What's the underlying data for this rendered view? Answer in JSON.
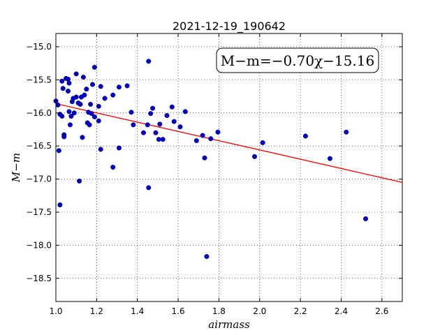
{
  "chart_data": {
    "type": "scatter",
    "title": "2021-12-19_190642",
    "xlabel": "airmass",
    "ylabel": "M−m",
    "xlim": [
      1.0,
      2.7
    ],
    "ylim": [
      -18.85,
      -14.8
    ],
    "y_inverted": true,
    "grid": true,
    "x_ticks": [
      1.0,
      1.2,
      1.4,
      1.6,
      1.8,
      2.0,
      2.2,
      2.4,
      2.6
    ],
    "x_tick_labels": [
      "1.0",
      "1.2",
      "1.4",
      "1.6",
      "1.8",
      "2.0",
      "2.2",
      "2.4",
      "2.6"
    ],
    "y_ticks": [
      -15.0,
      -15.5,
      -16.0,
      -16.5,
      -17.0,
      -17.5,
      -18.0,
      -18.5
    ],
    "y_tick_labels": [
      "−15.0",
      "−15.5",
      "−16.0",
      "−16.5",
      "−17.0",
      "−17.5",
      "−18.0",
      "−18.5"
    ],
    "annotation": "M−m=−0.70χ−15.16",
    "annotation_position": "top-right",
    "fit": {
      "slope": -0.7,
      "intercept": -15.16,
      "color": "#ff0000"
    },
    "marker_color": "#0000cc",
    "points": [
      [
        1.0,
        -15.82
      ],
      [
        1.01,
        -15.88
      ],
      [
        1.015,
        -16.57
      ],
      [
        1.02,
        -17.39
      ],
      [
        1.02,
        -16.02
      ],
      [
        1.03,
        -16.05
      ],
      [
        1.03,
        -15.52
      ],
      [
        1.035,
        -15.63
      ],
      [
        1.04,
        -16.33
      ],
      [
        1.04,
        -16.36
      ],
      [
        1.05,
        -15.48
      ],
      [
        1.06,
        -15.49
      ],
      [
        1.06,
        -15.67
      ],
      [
        1.065,
        -15.55
      ],
      [
        1.065,
        -15.98
      ],
      [
        1.07,
        -16.18
      ],
      [
        1.075,
        -16.05
      ],
      [
        1.08,
        -15.83
      ],
      [
        1.085,
        -15.78
      ],
      [
        1.09,
        -16.0
      ],
      [
        1.1,
        -15.41
      ],
      [
        1.1,
        -15.76
      ],
      [
        1.11,
        -15.85
      ],
      [
        1.115,
        -17.03
      ],
      [
        1.12,
        -15.87
      ],
      [
        1.125,
        -15.76
      ],
      [
        1.13,
        -16.37
      ],
      [
        1.135,
        -15.46
      ],
      [
        1.14,
        -15.73
      ],
      [
        1.15,
        -15.64
      ],
      [
        1.155,
        -16.15
      ],
      [
        1.16,
        -15.99
      ],
      [
        1.165,
        -16.18
      ],
      [
        1.17,
        -15.87
      ],
      [
        1.175,
        -16.01
      ],
      [
        1.18,
        -15.57
      ],
      [
        1.19,
        -15.31
      ],
      [
        1.19,
        -16.06
      ],
      [
        1.21,
        -16.12
      ],
      [
        1.21,
        -15.9
      ],
      [
        1.22,
        -15.6
      ],
      [
        1.22,
        -16.55
      ],
      [
        1.24,
        -15.78
      ],
      [
        1.28,
        -16.82
      ],
      [
        1.28,
        -15.73
      ],
      [
        1.31,
        -16.53
      ],
      [
        1.31,
        -15.61
      ],
      [
        1.35,
        -15.59
      ],
      [
        1.37,
        -15.99
      ],
      [
        1.38,
        -16.18
      ],
      [
        1.43,
        -16.3
      ],
      [
        1.45,
        -16.18
      ],
      [
        1.455,
        -17.13
      ],
      [
        1.455,
        -15.22
      ],
      [
        1.465,
        -16.01
      ],
      [
        1.475,
        -15.93
      ],
      [
        1.49,
        -16.3
      ],
      [
        1.505,
        -16.4
      ],
      [
        1.51,
        -16.17
      ],
      [
        1.525,
        -16.4
      ],
      [
        1.545,
        -16.04
      ],
      [
        1.57,
        -15.91
      ],
      [
        1.58,
        -16.13
      ],
      [
        1.61,
        -16.21
      ],
      [
        1.635,
        -15.98
      ],
      [
        1.69,
        -16.42
      ],
      [
        1.72,
        -16.34
      ],
      [
        1.73,
        -16.68
      ],
      [
        1.74,
        -18.17
      ],
      [
        1.76,
        -16.39
      ],
      [
        1.795,
        -16.29
      ],
      [
        1.975,
        -16.66
      ],
      [
        2.015,
        -16.45
      ],
      [
        2.225,
        -16.35
      ],
      [
        2.345,
        -16.69
      ],
      [
        2.425,
        -16.29
      ],
      [
        2.52,
        -17.6
      ]
    ]
  }
}
